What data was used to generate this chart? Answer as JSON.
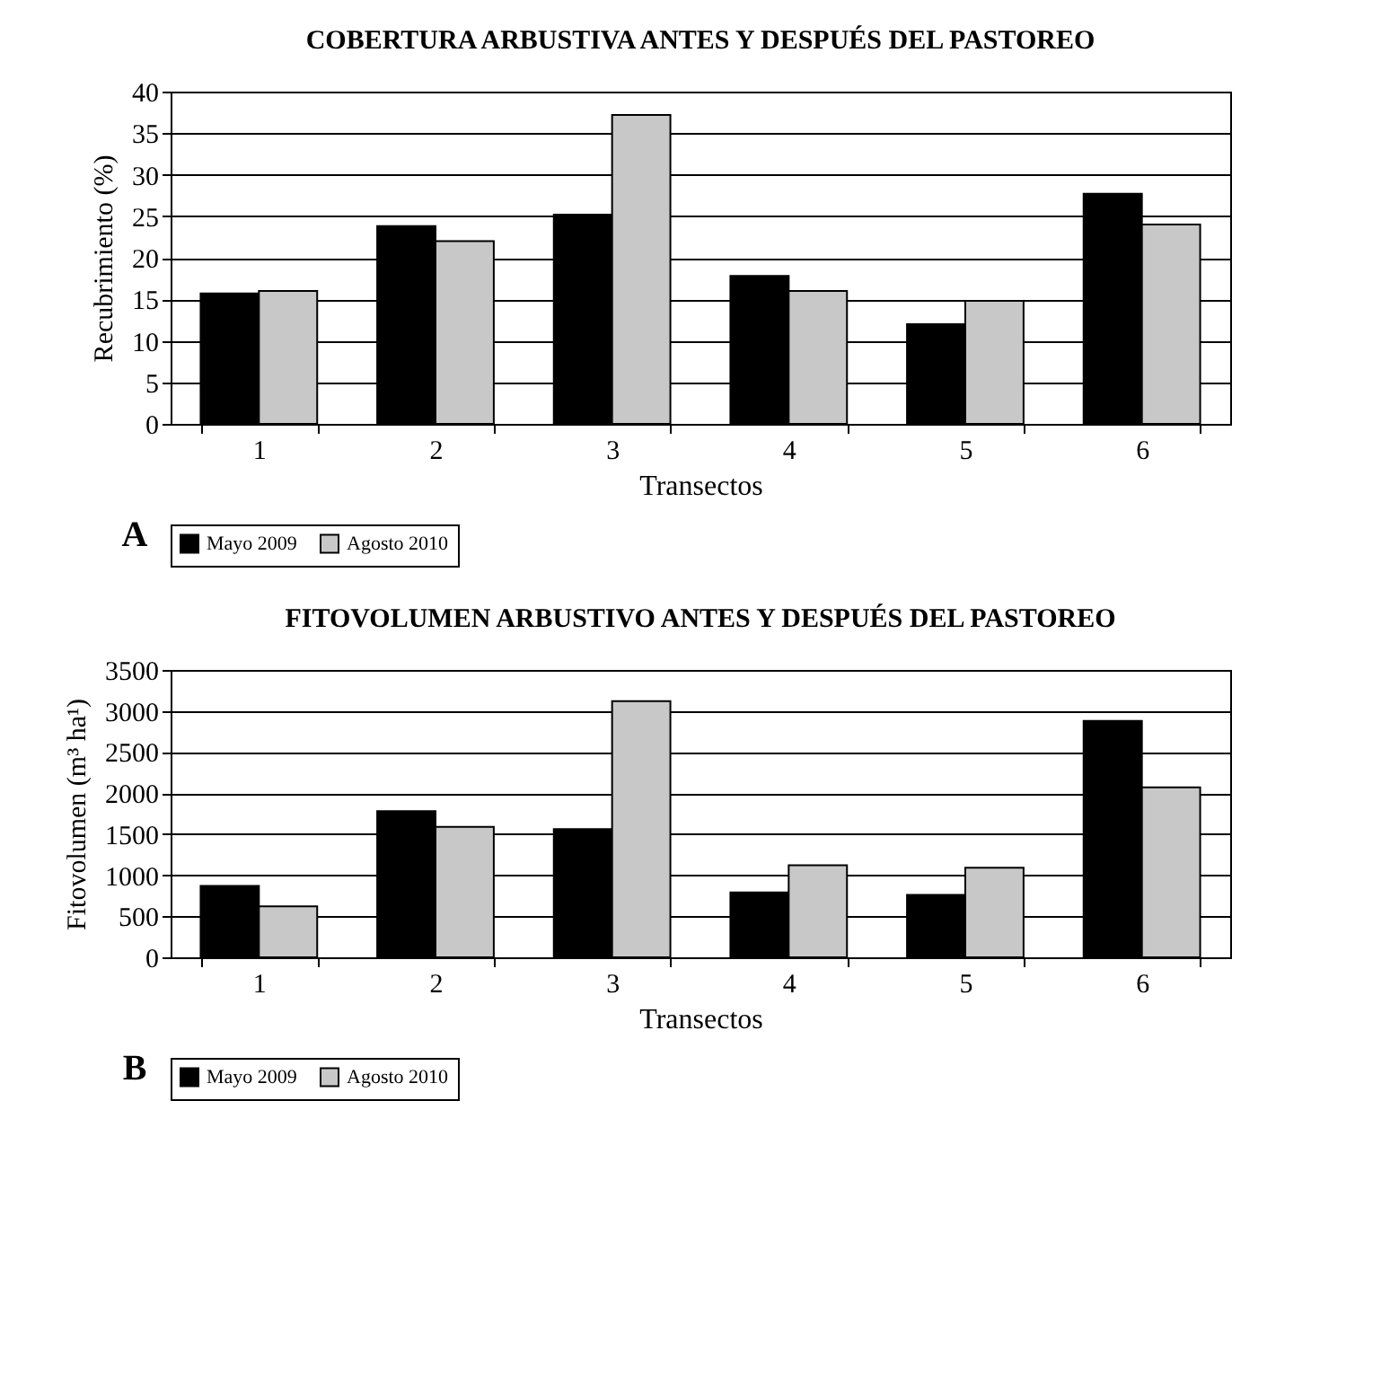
{
  "chart_data": [
    {
      "type": "bar",
      "title": "COBERTURA ARBUSTIVA ANTES Y DESPUÉS DEL PASTOREO",
      "xlabel": "Transectos",
      "ylabel": "Recubrimiento  (%)",
      "categories": [
        "1",
        "2",
        "3",
        "4",
        "5",
        "6"
      ],
      "series": [
        {
          "name": "Mayo 2009",
          "color": "#000000",
          "values": [
            15.7,
            23.8,
            25.2,
            17.8,
            12,
            27.7
          ]
        },
        {
          "name": "Agosto 2010",
          "color": "#c8c8c8",
          "values": [
            16,
            22,
            37.2,
            16,
            14.8,
            24
          ]
        }
      ],
      "ylim": [
        0,
        40
      ],
      "yticks": [
        0,
        5,
        10,
        15,
        20,
        25,
        30,
        35,
        40
      ],
      "grid": "y",
      "legend": "bottom",
      "annotations": [
        "A"
      ]
    },
    {
      "type": "bar",
      "title": "FITOVOLUMEN ARBUSTIVO ANTES Y DESPUÉS DEL PASTOREO",
      "xlabel": "Transectos",
      "ylabel": "Fitovolumen  (m³ ha¹)",
      "categories": [
        "1",
        "2",
        "3",
        "4",
        "5",
        "6"
      ],
      "series": [
        {
          "name": "Mayo 2009",
          "color": "#000000",
          "values": [
            870,
            1780,
            1560,
            790,
            760,
            2880
          ]
        },
        {
          "name": "Agosto 2010",
          "color": "#c8c8c8",
          "values": [
            620,
            1590,
            3120,
            1120,
            1090,
            2070
          ]
        }
      ],
      "ylim": [
        0,
        3500
      ],
      "yticks": [
        0,
        500,
        1000,
        1500,
        2000,
        2500,
        3000,
        3500
      ],
      "grid": "y",
      "legend": "bottom",
      "annotations": [
        "B"
      ]
    }
  ]
}
